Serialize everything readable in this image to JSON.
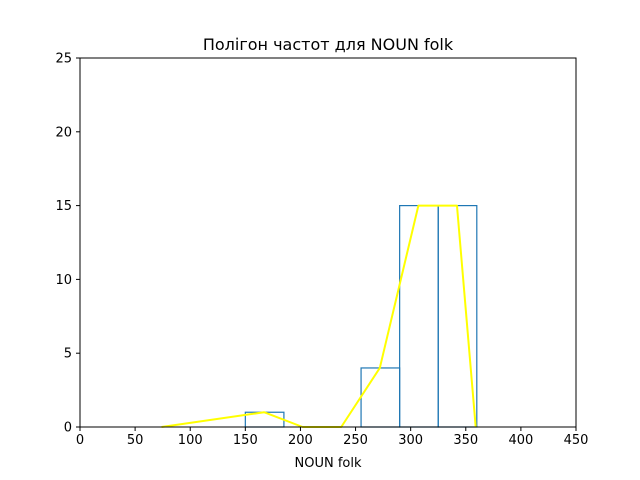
{
  "chart_data": {
    "type": "histogram-with-frequency-polygon",
    "title": "Полігон частот для NOUN folk",
    "xlabel": "NOUN folk",
    "ylabel": "",
    "xlim": [
      0,
      450
    ],
    "ylim": [
      0,
      25
    ],
    "xticks": [
      "0",
      "50",
      "100",
      "150",
      "200",
      "250",
      "300",
      "350",
      "400",
      "450"
    ],
    "yticks": [
      "0",
      "5",
      "10",
      "15",
      "20",
      "25"
    ],
    "grid": false,
    "legend": "none",
    "histogram": {
      "color": "#1f77b4",
      "bins": [
        {
          "x0": 150,
          "x1": 185,
          "count": 1
        },
        {
          "x0": 185,
          "x1": 220,
          "count": 0
        },
        {
          "x0": 220,
          "x1": 255,
          "count": 0
        },
        {
          "x0": 255,
          "x1": 290,
          "count": 4
        },
        {
          "x0": 290,
          "x1": 325,
          "count": 15
        },
        {
          "x0": 325,
          "x1": 360,
          "count": 15
        }
      ]
    },
    "polygon": {
      "color": "#ffff00",
      "x": [
        74,
        167,
        202,
        237,
        272,
        307,
        342,
        359
      ],
      "y": [
        0,
        1,
        0,
        0,
        4,
        15,
        15,
        0
      ]
    }
  }
}
